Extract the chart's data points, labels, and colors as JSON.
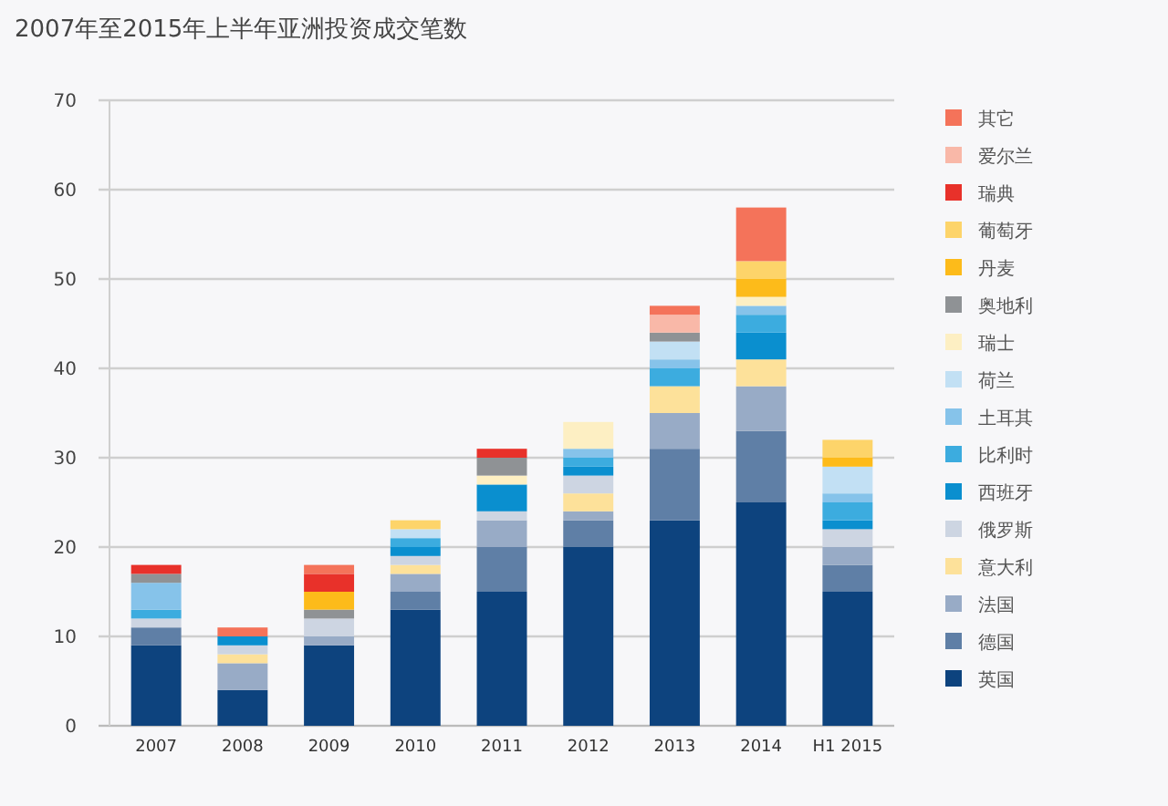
{
  "chart_data": {
    "type": "bar",
    "title": "2007年至2015年上半年亚洲投资成交笔数",
    "stacked": true,
    "legend": "right",
    "grid": "y",
    "categories": [
      "2007",
      "2008",
      "2009",
      "2010",
      "2011",
      "2012",
      "2013",
      "2014",
      "H1 2015"
    ],
    "ylim": [
      0,
      70
    ],
    "yticks": [
      0,
      10,
      20,
      30,
      40,
      50,
      60,
      70
    ],
    "series": [
      {
        "name": "英国",
        "color": "#0d437e",
        "values": [
          9,
          4,
          9,
          13,
          15,
          20,
          23,
          25,
          15
        ]
      },
      {
        "name": "德国",
        "color": "#5f7fa6",
        "values": [
          2,
          0,
          0,
          2,
          5,
          3,
          8,
          8,
          3
        ]
      },
      {
        "name": "法国",
        "color": "#98abc6",
        "values": [
          0,
          3,
          1,
          2,
          3,
          1,
          4,
          5,
          2
        ]
      },
      {
        "name": "意大利",
        "color": "#fde19a",
        "values": [
          0,
          1,
          0,
          1,
          0,
          2,
          3,
          3,
          0
        ]
      },
      {
        "name": "俄罗斯",
        "color": "#cdd5e2",
        "values": [
          1,
          1,
          2,
          1,
          1,
          2,
          0,
          0,
          2
        ]
      },
      {
        "name": "西班牙",
        "color": "#0a8fcf",
        "values": [
          0,
          1,
          0,
          1,
          3,
          1,
          0,
          3,
          1
        ]
      },
      {
        "name": "比利时",
        "color": "#3cacdf",
        "values": [
          1,
          0,
          0,
          1,
          0,
          1,
          2,
          2,
          2
        ]
      },
      {
        "name": "土耳其",
        "color": "#86c3ea",
        "values": [
          3,
          0,
          0,
          0,
          0,
          1,
          1,
          1,
          1
        ]
      },
      {
        "name": "荷兰",
        "color": "#c2e0f4",
        "values": [
          0,
          0,
          0,
          1,
          0,
          0,
          2,
          0,
          3
        ]
      },
      {
        "name": "瑞士",
        "color": "#fdefc3",
        "values": [
          0,
          0,
          0,
          0,
          1,
          3,
          0,
          1,
          0
        ]
      },
      {
        "name": "奥地利",
        "color": "#8f9295",
        "values": [
          1,
          0,
          1,
          0,
          2,
          0,
          1,
          0,
          0
        ]
      },
      {
        "name": "丹麦",
        "color": "#fdbb1a",
        "values": [
          0,
          0,
          2,
          0,
          0,
          0,
          0,
          2,
          1
        ]
      },
      {
        "name": "葡萄牙",
        "color": "#fdd46a",
        "values": [
          0,
          0,
          0,
          1,
          0,
          0,
          0,
          2,
          2
        ]
      },
      {
        "name": "瑞典",
        "color": "#e8312a",
        "values": [
          1,
          0,
          2,
          0,
          1,
          0,
          0,
          0,
          0
        ]
      },
      {
        "name": "爱尔兰",
        "color": "#f9b8a8",
        "values": [
          0,
          0,
          0,
          0,
          0,
          0,
          2,
          0,
          0
        ]
      },
      {
        "name": "其它",
        "color": "#f4735a",
        "values": [
          0,
          1,
          1,
          0,
          0,
          0,
          1,
          6,
          0
        ]
      }
    ]
  }
}
